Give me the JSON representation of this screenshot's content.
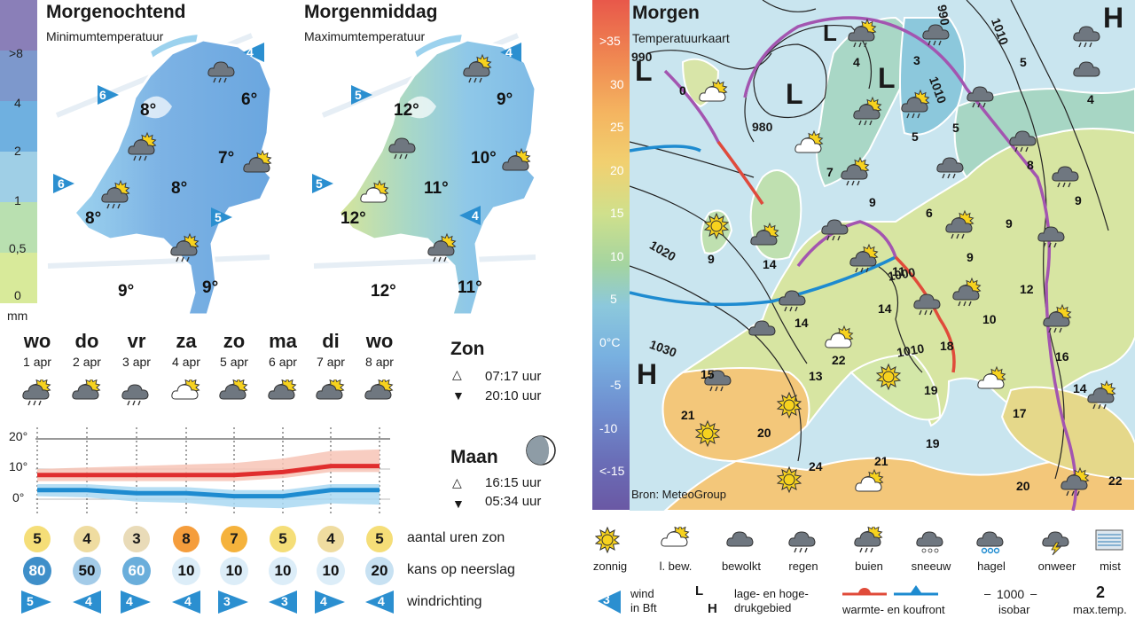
{
  "precip_scale": {
    "labels": [
      ">8",
      "4",
      "2",
      "1",
      "0,5",
      "0"
    ],
    "unit": "mm",
    "colors": [
      "#8a7fb8",
      "#7d98cc",
      "#6fb0e0",
      "#9fcfe6",
      "#b9e0b0",
      "#d8ea9a"
    ]
  },
  "nl_morning": {
    "title": "Morgenochtend",
    "subtitle": "Minimumtemperatuur",
    "temps": [
      "8°",
      "6°",
      "7°",
      "8°",
      "8°",
      "9°",
      "9°"
    ],
    "winds": [
      "4",
      "6",
      "6",
      "5"
    ]
  },
  "nl_afternoon": {
    "title": "Morgenmiddag",
    "subtitle": "Maximumtemperatuur",
    "temps": [
      "12°",
      "9°",
      "10°",
      "11°",
      "12°",
      "11°",
      "12°"
    ],
    "winds": [
      "4",
      "5",
      "5",
      "4"
    ]
  },
  "days": [
    {
      "name": "wo",
      "date": "1 apr",
      "icon": "showers-icon",
      "sun": "5",
      "rain": "80",
      "wind": "5"
    },
    {
      "name": "do",
      "date": "2 apr",
      "icon": "partly-cloudy-icon",
      "sun": "4",
      "rain": "50",
      "wind": "4"
    },
    {
      "name": "vr",
      "date": "3 apr",
      "icon": "rain-icon",
      "sun": "3",
      "rain": "60",
      "wind": "4"
    },
    {
      "name": "za",
      "date": "4 apr",
      "icon": "light-cloud-icon",
      "sun": "8",
      "rain": "10",
      "wind": "4"
    },
    {
      "name": "zo",
      "date": "5 apr",
      "icon": "partly-cloudy-icon",
      "sun": "7",
      "rain": "10",
      "wind": "3"
    },
    {
      "name": "ma",
      "date": "6 apr",
      "icon": "partly-cloudy-icon",
      "sun": "5",
      "rain": "10",
      "wind": "3"
    },
    {
      "name": "di",
      "date": "7 apr",
      "icon": "partly-cloudy-icon",
      "sun": "4",
      "rain": "10",
      "wind": "4"
    },
    {
      "name": "wo",
      "date": "8 apr",
      "icon": "partly-cloudy-icon",
      "sun": "5",
      "rain": "20",
      "wind": "4"
    }
  ],
  "row_labels": {
    "sun": "aantal uren zon",
    "rain": "kans op neerslag",
    "wind": "windrichting"
  },
  "chart_data": {
    "type": "area",
    "y_ticks": [
      "20°",
      "10°",
      "0°"
    ],
    "ylim": [
      -5,
      22
    ],
    "series": [
      {
        "values": [
          8,
          8,
          8,
          8,
          8,
          9,
          11,
          11
        ]
      },
      {
        "values": [
          3,
          3,
          2,
          2,
          1,
          1,
          3,
          3
        ]
      }
    ]
  },
  "sun": {
    "title": "Zon",
    "rise": "07:17 uur",
    "set": "20:10 uur"
  },
  "moon": {
    "title": "Maan",
    "rise": "16:15 uur",
    "set": "05:34 uur"
  },
  "europe": {
    "title": "Morgen",
    "subtitle": "Temperatuurkaart",
    "source": "Bron: MeteoGroup",
    "temp_scale": [
      ">35",
      "30",
      "25",
      "20",
      "15",
      "10",
      "5",
      "0°C",
      "-5",
      "-10",
      "<-15"
    ],
    "isobars": [
      "990",
      "980",
      "1010",
      "1020",
      "1030",
      "1000",
      "1010",
      "990",
      "1010"
    ],
    "pressure": [
      "L",
      "L",
      "L",
      "L",
      "H",
      "H"
    ],
    "temps": [
      "0",
      "4",
      "3",
      "5",
      "4",
      "5",
      "5",
      "8",
      "7",
      "9",
      "6",
      "9",
      "9",
      "9",
      "14",
      "9",
      "11",
      "14",
      "14",
      "12",
      "10",
      "18",
      "16",
      "14",
      "22",
      "13",
      "15",
      "19",
      "17",
      "21",
      "20",
      "19",
      "24",
      "21",
      "20",
      "22"
    ]
  },
  "legend": {
    "items": [
      {
        "icon": "sun-icon",
        "label": "zonnig"
      },
      {
        "icon": "light-cloud-icon",
        "label": "l. bew."
      },
      {
        "icon": "cloud-icon",
        "label": "bewolkt"
      },
      {
        "icon": "rain-icon",
        "label": "regen"
      },
      {
        "icon": "showers-icon",
        "label": "buien"
      },
      {
        "icon": "snow-icon",
        "label": "sneeuw"
      },
      {
        "icon": "hail-icon",
        "label": "hagel"
      },
      {
        "icon": "thunder-icon",
        "label": "onweer"
      },
      {
        "icon": "fog-icon",
        "label": "mist"
      }
    ],
    "wind_num": "3",
    "wind_text": "wind\nin Bft",
    "pressure_text": "lage- en hoge-\ndrukgebied",
    "front_text": "warmte- en koufront",
    "isobar_sample": "1000",
    "isobar_text": "isobar",
    "maxtemp_num": "2",
    "maxtemp_text": "max.temp."
  }
}
